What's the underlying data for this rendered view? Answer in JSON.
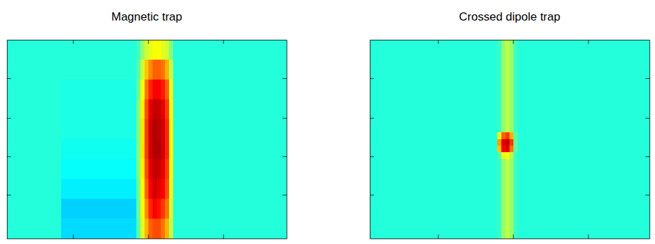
{
  "chart_data": [
    {
      "type": "heatmap",
      "title": "Magnetic trap",
      "tick_labels": false,
      "xlim": [
        0,
        410
      ],
      "ylim": [
        0,
        300
      ],
      "xticks": [
        97,
        207,
        317
      ],
      "yticks": [
        58,
        118,
        176,
        234
      ],
      "color_range": [
        0,
        1
      ],
      "x_edges": [
        0,
        80,
        190,
        196,
        202,
        208,
        214,
        220,
        226,
        232,
        238,
        244,
        410
      ],
      "y_edges": [
        0,
        30,
        60,
        90,
        120,
        150,
        180,
        210,
        240,
        270,
        300
      ],
      "cells": [
        [
          0.41,
          0.41,
          0.44,
          0.52,
          0.58,
          0.6,
          0.62,
          0.62,
          0.6,
          0.58,
          0.5,
          0.41
        ],
        [
          0.41,
          0.41,
          0.46,
          0.58,
          0.68,
          0.74,
          0.78,
          0.78,
          0.76,
          0.7,
          0.56,
          0.41
        ],
        [
          0.41,
          0.4,
          0.48,
          0.62,
          0.76,
          0.84,
          0.88,
          0.88,
          0.85,
          0.78,
          0.6,
          0.41
        ],
        [
          0.41,
          0.4,
          0.5,
          0.64,
          0.8,
          0.9,
          0.93,
          0.93,
          0.9,
          0.82,
          0.62,
          0.41
        ],
        [
          0.41,
          0.4,
          0.5,
          0.65,
          0.82,
          0.92,
          0.95,
          0.94,
          0.92,
          0.84,
          0.63,
          0.41
        ],
        [
          0.41,
          0.39,
          0.5,
          0.65,
          0.82,
          0.92,
          0.95,
          0.95,
          0.92,
          0.84,
          0.63,
          0.41
        ],
        [
          0.41,
          0.38,
          0.5,
          0.64,
          0.8,
          0.9,
          0.93,
          0.93,
          0.9,
          0.82,
          0.62,
          0.41
        ],
        [
          0.41,
          0.36,
          0.48,
          0.63,
          0.78,
          0.88,
          0.92,
          0.9,
          0.88,
          0.8,
          0.6,
          0.41
        ],
        [
          0.41,
          0.33,
          0.47,
          0.62,
          0.74,
          0.84,
          0.88,
          0.86,
          0.82,
          0.76,
          0.58,
          0.41
        ],
        [
          0.41,
          0.34,
          0.46,
          0.6,
          0.7,
          0.78,
          0.8,
          0.8,
          0.76,
          0.7,
          0.56,
          0.41
        ]
      ]
    },
    {
      "type": "heatmap",
      "title": "Crossed dipole trap",
      "tick_labels": false,
      "xlim": [
        0,
        410
      ],
      "ylim": [
        0,
        300
      ],
      "xticks": [
        100,
        210,
        320
      ],
      "yticks": [
        58,
        118,
        176,
        234
      ],
      "color_range": [
        0,
        1
      ],
      "x_edges": [
        0,
        187,
        193,
        199,
        205,
        211,
        217,
        410
      ],
      "y_edges": [
        0,
        140,
        150,
        160,
        170,
        180,
        300
      ],
      "cells": [
        [
          0.41,
          0.43,
          0.52,
          0.56,
          0.52,
          0.44,
          0.41
        ],
        [
          0.41,
          0.6,
          0.78,
          0.82,
          0.7,
          0.46,
          0.41
        ],
        [
          0.41,
          0.72,
          0.9,
          0.93,
          0.82,
          0.48,
          0.41
        ],
        [
          0.41,
          0.68,
          0.88,
          0.9,
          0.76,
          0.47,
          0.41
        ],
        [
          0.41,
          0.46,
          0.6,
          0.62,
          0.55,
          0.44,
          0.41
        ],
        [
          0.41,
          0.43,
          0.52,
          0.56,
          0.52,
          0.44,
          0.41
        ]
      ]
    }
  ]
}
